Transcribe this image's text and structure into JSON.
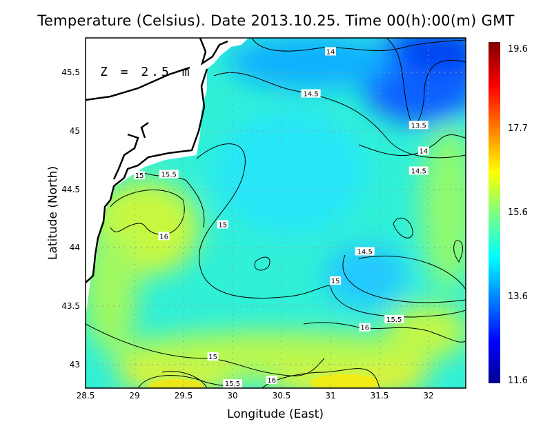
{
  "title": "Temperature (Celsius). Date 2013.10.25. Time 00(h):00(m)  GMT",
  "depth_label": "Z = 2.5 m",
  "x_axis": {
    "label": "Longitude (East)",
    "ticks": [
      "28.5",
      "29",
      "29.5",
      "30",
      "30.5",
      "31",
      "31.5",
      "32"
    ],
    "range": [
      28.5,
      32.38
    ]
  },
  "y_axis": {
    "label": "Latitude (North)",
    "ticks": [
      "43",
      "43.5",
      "44",
      "44.5",
      "45",
      "45.5"
    ],
    "range": [
      42.8,
      45.8
    ]
  },
  "colorbar": {
    "labels": [
      "19.6",
      "17.7",
      "15.6",
      "13.6",
      "11.6"
    ],
    "min": 11.6,
    "max": 19.6,
    "colormap": "jet"
  },
  "contour_labels": [
    {
      "text": "14",
      "lon": 31.0,
      "lat": 45.68
    },
    {
      "text": "14.5",
      "lon": 30.8,
      "lat": 45.32
    },
    {
      "text": "13.5",
      "lon": 31.9,
      "lat": 45.05
    },
    {
      "text": "14",
      "lon": 31.95,
      "lat": 44.83
    },
    {
      "text": "14.5",
      "lon": 31.9,
      "lat": 44.66
    },
    {
      "text": "15",
      "lon": 29.05,
      "lat": 44.62
    },
    {
      "text": "15.5",
      "lon": 29.35,
      "lat": 44.63
    },
    {
      "text": "15",
      "lon": 29.9,
      "lat": 44.2
    },
    {
      "text": "16",
      "lon": 29.3,
      "lat": 44.1
    },
    {
      "text": "14.5",
      "lon": 31.35,
      "lat": 43.97
    },
    {
      "text": "15",
      "lon": 31.05,
      "lat": 43.72
    },
    {
      "text": "15.5",
      "lon": 31.65,
      "lat": 43.39
    },
    {
      "text": "16",
      "lon": 31.35,
      "lat": 43.32
    },
    {
      "text": "15",
      "lon": 29.8,
      "lat": 43.07
    },
    {
      "text": "15.5",
      "lon": 30.0,
      "lat": 42.84
    },
    {
      "text": "16",
      "lon": 30.4,
      "lat": 42.87
    }
  ]
}
